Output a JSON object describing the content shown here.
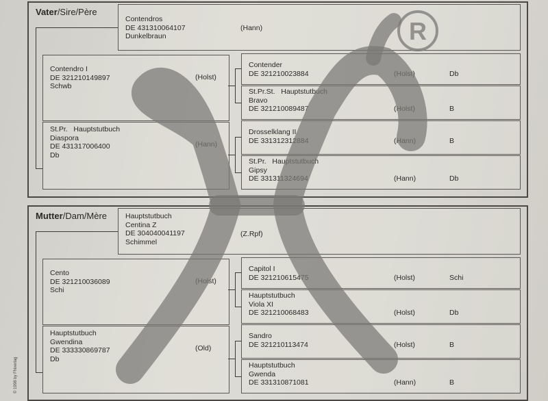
{
  "sire_section": {
    "header_bold": "Vater",
    "header_rest": "/Sire/Père",
    "parent": {
      "lines": [
        "Contendros",
        "DE 431310064107",
        "Dunkelbraun"
      ],
      "breed": "(Hann)"
    },
    "grandparents": [
      {
        "lines": [
          "Contendro I",
          "DE 321210149897",
          "Schwb"
        ],
        "breed": "(Holst)"
      },
      {
        "lines": [
          "St.Pr.   Hauptstutbuch",
          "Diaspora",
          "DE 431317006400",
          "Db"
        ],
        "breed": "(Hann)"
      }
    ],
    "great_grandparents": [
      {
        "lines": [
          "Contender",
          "DE 321210023884"
        ],
        "breed": "(Holst)",
        "color": "Db"
      },
      {
        "lines": [
          "St.Pr.St.   Hauptstutbuch",
          "Bravo",
          "DE 321210089487"
        ],
        "breed": "(Holst)",
        "color": "B"
      },
      {
        "lines": [
          "Drosselklang II",
          "DE 331312312884"
        ],
        "breed": "(Hann)",
        "color": "B"
      },
      {
        "lines": [
          "St.Pr.   Hauptstutbuch",
          "Gipsy",
          "DE 331311324694"
        ],
        "breed": "(Hann)",
        "color": "Db"
      }
    ]
  },
  "dam_section": {
    "header_bold": "Mutter",
    "header_rest": "/Dam/Mère",
    "parent": {
      "lines": [
        "Hauptstutbuch",
        "Centina Z",
        "DE 304040041197",
        "Schimmel"
      ],
      "breed": "(Z.Rpf)"
    },
    "grandparents": [
      {
        "lines": [
          "Cento",
          "DE 321210036089",
          "Schi"
        ],
        "breed": "(Holst)"
      },
      {
        "lines": [
          "Hauptstutbuch",
          "Gwendina",
          "DE 333330869787",
          "Db"
        ],
        "breed": "(Old)"
      }
    ],
    "great_grandparents": [
      {
        "lines": [
          "Capitol I",
          "DE 321210615475"
        ],
        "breed": "(Holst)",
        "color": "Schi"
      },
      {
        "lines": [
          "Hauptstutbuch",
          "Viola XI",
          "DE 321210068483"
        ],
        "breed": "(Holst)",
        "color": "Db"
      },
      {
        "lines": [
          "Sandro",
          "DE 321210113474"
        ],
        "breed": "(Holst)",
        "color": "B"
      },
      {
        "lines": [
          "Hauptstutbuch",
          "Gwenda",
          "DE 331310871081"
        ],
        "breed": "(Hann)",
        "color": "B"
      }
    ]
  },
  "watermark": {
    "logo": "horse-head-logo",
    "mark": "registered-trademark",
    "mark_text": "R",
    "color": "#7a7876"
  },
  "copyright": "© 1998 by FNverlag"
}
